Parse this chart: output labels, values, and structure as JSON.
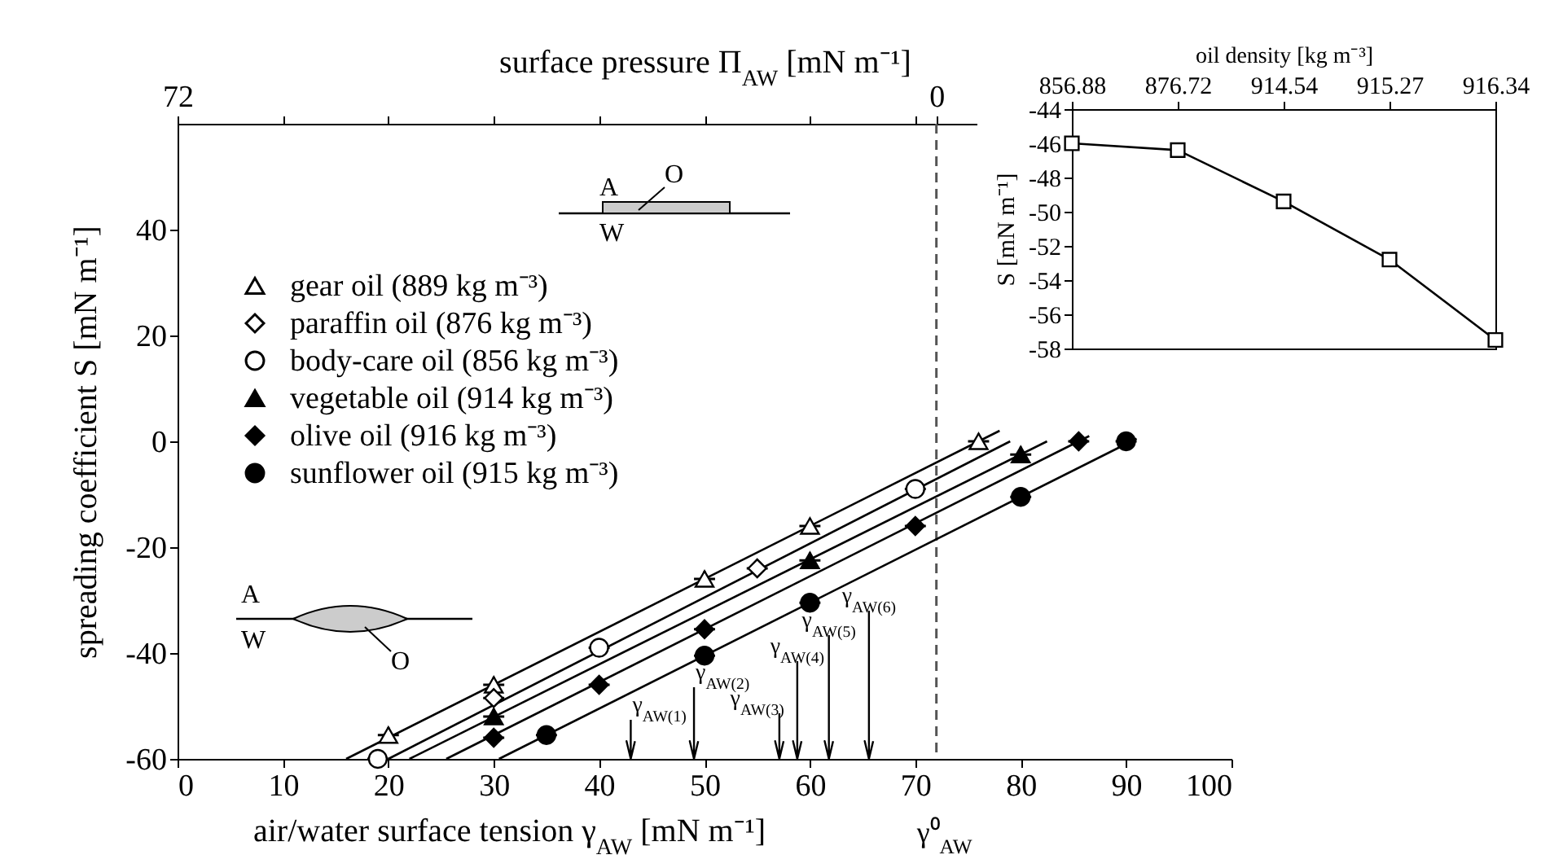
{
  "chart_data": [
    {
      "type": "scatter",
      "xlabel": "air/water surface tension γ$_{AW}$ [mN m⁻¹]",
      "ylabel": "spreading coefficient S [mN m⁻¹]",
      "x2label": "surface pressure Π$_{AW}$ [mN m⁻¹]",
      "xlim": [
        0,
        100
      ],
      "xticks": [
        0,
        10,
        20,
        30,
        40,
        50,
        60,
        70,
        80,
        90,
        100
      ],
      "ylim": [
        -60,
        60
      ],
      "yticks": [
        -60,
        -40,
        -20,
        0,
        20,
        40
      ],
      "x2lim": [
        72,
        -28
      ],
      "x2ticks": [
        72,
        {
          "value": 62,
          "label": null
        },
        {
          "value": 52,
          "label": null
        },
        {
          "value": 42,
          "label": null
        },
        {
          "value": 32,
          "label": null
        },
        {
          "value": 22,
          "label": null
        },
        {
          "value": 12,
          "label": null
        },
        {
          "value": 2,
          "label": null
        },
        0
      ],
      "legend": "top left",
      "ref_lines": [
        {
          "axis": "x",
          "value": 72,
          "label": "γ⁰$_{AW}$",
          "line_style": "dashed",
          "color": "#555555"
        },
        {
          "axis": "x",
          "value": 43,
          "label": "γ$_{AW(1)}$",
          "line_style": "solid",
          "color": "#000000"
        },
        {
          "axis": "x",
          "value": 49,
          "label": "γ$_{AW(2)}$",
          "line_style": "solid",
          "color": "#000000"
        },
        {
          "axis": "x",
          "value": 57.1,
          "label": "γ$_{AW(3)}$",
          "line_style": "solid",
          "color": "#000000"
        },
        {
          "axis": "x",
          "value": 58.8,
          "label": "γ$_{AW(4)}$",
          "line_style": "solid",
          "color": "#000000"
        },
        {
          "axis": "x",
          "value": 61.8,
          "label": "γ$_{AW(5)}$",
          "line_style": "solid",
          "color": "#000000"
        },
        {
          "axis": "x",
          "value": 65.6,
          "label": "γ$_{AW(6)}$",
          "line_style": "solid",
          "color": "#000000"
        }
      ],
      "annotations": [
        "A",
        "W",
        "O",
        "A",
        "O",
        "W"
      ],
      "series": [
        {
          "name": "gear oil (889 kg m⁻³)",
          "type": "scatter",
          "marker": "triangle",
          "color": "#ffffff",
          "x": [
            20,
            30,
            50,
            60,
            76
          ],
          "values": [
            -55.5,
            -46,
            -26,
            -16,
            0
          ],
          "errors": [
            1.5,
            1.5,
            1.5,
            1.5,
            1.5
          ],
          "xerrors": [
            1,
            1,
            1,
            1,
            1
          ]
        },
        {
          "name": "paraffin oil  (876 kg m⁻³)",
          "type": "scatter",
          "marker": "diamond",
          "color": "#ffffff",
          "x": [
            30,
            55
          ],
          "values": [
            -48.5,
            -24
          ],
          "errors": [
            1.5,
            1.5
          ],
          "xerrors": [
            1,
            1
          ]
        },
        {
          "name": "body-care oil  (856 kg m⁻³)",
          "type": "scatter",
          "marker": "circle",
          "color": "#ffffff",
          "x": [
            19,
            40,
            70
          ],
          "values": [
            -60,
            -39,
            -9
          ],
          "errors": [
            1.5,
            1.5,
            1.5
          ],
          "xerrors": [
            1,
            1,
            1
          ]
        },
        {
          "name": "vegetable oil  (914 kg m⁻³)",
          "type": "scatter",
          "marker": "triangle",
          "color": "#000000",
          "x": [
            30,
            60,
            80
          ],
          "values": [
            -52,
            -22.5,
            -2.5
          ],
          "errors": [
            1.5,
            1.5,
            1.5
          ],
          "xerrors": [
            1,
            1,
            1
          ]
        },
        {
          "name": "olive oil  (916 kg m⁻³)",
          "type": "scatter",
          "marker": "diamond",
          "color": "#000000",
          "x": [
            30,
            40,
            50,
            70,
            85.5
          ],
          "values": [
            -56,
            -46,
            -35.5,
            -16,
            0
          ],
          "errors": [
            1.5,
            1.5,
            1.5,
            1.5,
            1.5
          ],
          "xerrors": [
            1,
            1,
            1,
            1,
            1
          ]
        },
        {
          "name": "sunflower oil  (915 kg m⁻³)",
          "type": "scatter",
          "marker": "circle",
          "color": "#000000",
          "x": [
            35,
            50,
            60,
            80,
            90
          ],
          "values": [
            -55.5,
            -40.5,
            -30.5,
            -10.5,
            0
          ],
          "errors": [
            1.5,
            1.5,
            1.5,
            1.5,
            1.5
          ],
          "xerrors": [
            1,
            1,
            1,
            1,
            1
          ]
        },
        {
          "type": "line",
          "color": "#000000",
          "x": [
            16,
            78
          ],
          "values": [
            -60,
            2
          ]
        },
        {
          "type": "line",
          "color": "#000000",
          "x": [
            20,
            79
          ],
          "values": [
            -60,
            0
          ]
        },
        {
          "type": "line",
          "color": "#000000",
          "x": [
            22,
            82.5
          ],
          "values": [
            -60,
            0
          ]
        },
        {
          "type": "line",
          "color": "#000000",
          "x": [
            25.5,
            86.5
          ],
          "values": [
            -60,
            1
          ]
        },
        {
          "type": "line",
          "color": "#000000",
          "x": [
            30.5,
            91
          ],
          "values": [
            -60,
            0.5
          ]
        }
      ]
    },
    {
      "type": "line",
      "xlabel": "oil density [kg m⁻³]",
      "ylabel": "S [mN m⁻¹]",
      "categories": [
        "856.88",
        "876.72",
        "914.54",
        "915.27",
        "916.34"
      ],
      "ylim": [
        -58,
        -44
      ],
      "yticks": [
        -58,
        -56,
        -54,
        -52,
        -50,
        -48,
        -46,
        -44
      ],
      "marker": "square",
      "series": [
        {
          "color": "#000000",
          "values": [
            -46,
            -46.4,
            -49.4,
            -52.8,
            -57.5
          ]
        }
      ]
    }
  ]
}
